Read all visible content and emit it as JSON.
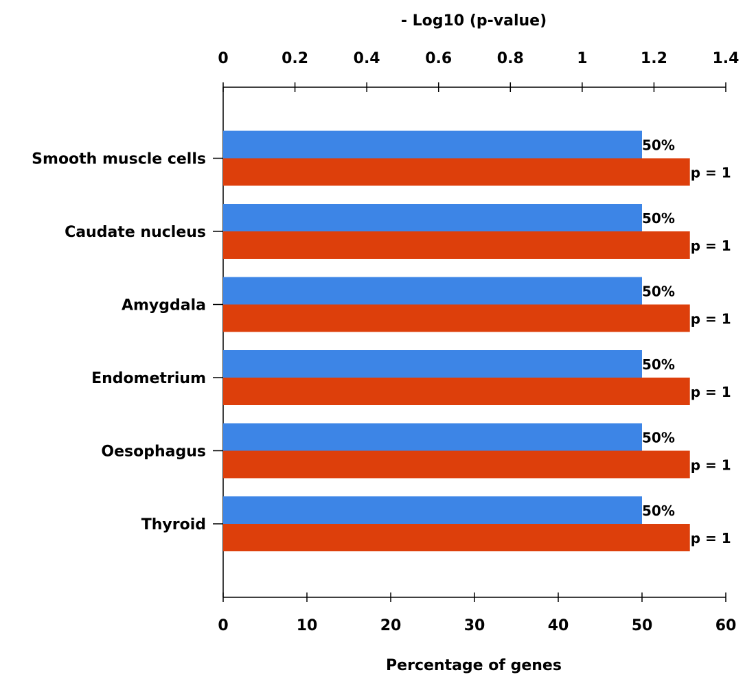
{
  "chart_data": {
    "type": "bar",
    "orientation": "horizontal",
    "categories": [
      "Smooth muscle cells",
      "Caudate nucleus",
      "Amygdala",
      "Endometrium",
      "Oesophagus",
      "Thyroid"
    ],
    "series": [
      {
        "axis": "bottom",
        "color": "#3d85e6",
        "values": [
          50,
          50,
          50,
          50,
          50,
          50
        ],
        "labels": [
          "50%",
          "50%",
          "50%",
          "50%",
          "50%",
          "50%"
        ]
      },
      {
        "axis": "top",
        "color": "#dd3f0b",
        "values": [
          1.3,
          1.3,
          1.3,
          1.3,
          1.3,
          1.3
        ],
        "labels": [
          "p = 1",
          "p = 1",
          "p = 1",
          "p = 1",
          "p = 1",
          "p = 1"
        ]
      }
    ],
    "xlabel_bottom": "Percentage of genes",
    "xlabel_top": "- Log10 (p-value)",
    "xlim_bottom": [
      0,
      60
    ],
    "xlim_top": [
      0,
      1.4
    ],
    "xticks_bottom": [
      "0",
      "10",
      "20",
      "30",
      "40",
      "50",
      "60"
    ],
    "xticks_top": [
      "0",
      "0.2",
      "0.4",
      "0.6",
      "0.8",
      "1",
      "1.2",
      "1.4"
    ],
    "grid": false,
    "legend": "none"
  }
}
